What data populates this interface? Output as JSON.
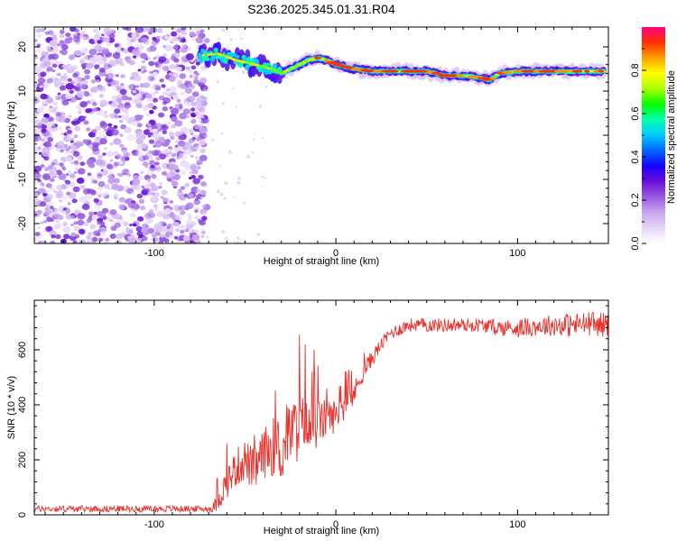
{
  "title": "S236.2025.345.01.31.R04",
  "chart_data": [
    {
      "type": "heatmap",
      "xlabel": "Height of straight line (km)",
      "ylabel": "Frequency (Hz)",
      "xlim": [
        -166,
        150
      ],
      "ylim": [
        -24.5,
        24.5
      ],
      "x_ticks": [
        -100,
        0,
        100
      ],
      "x_tick_labels": [
        "-100",
        "0",
        "100"
      ],
      "y_ticks": [
        20,
        10,
        0,
        -10,
        -20
      ],
      "y_tick_labels": [
        "20",
        "10",
        "0",
        "-10",
        "-20"
      ],
      "noise_region_x": [
        -166,
        -75
      ],
      "signal_track": {
        "x": [
          -75,
          -65,
          -55,
          -45,
          -40,
          -35,
          -30,
          -25,
          -20,
          -15,
          -10,
          -5,
          0,
          5,
          10,
          20,
          30,
          40,
          50,
          60,
          70,
          80,
          85,
          90,
          100,
          110,
          120,
          130,
          140,
          148
        ],
        "y": [
          18,
          18.5,
          17,
          16,
          15.5,
          15,
          14,
          15,
          16,
          17,
          17.5,
          17,
          16,
          15.5,
          15,
          14.5,
          14.5,
          14.5,
          14.5,
          13.5,
          13.5,
          13,
          12.5,
          14,
          14.5,
          14.5,
          14.5,
          14.5,
          14.5,
          14.5
        ]
      },
      "colorbar": {
        "label": "Normalized spectral amplitude",
        "range": [
          0,
          1
        ],
        "ticks": [
          0.0,
          0.2,
          0.4,
          0.6,
          0.8
        ],
        "tick_labels": [
          "0.0",
          "0.2",
          "0.4",
          "0.6",
          "0.8"
        ],
        "colors": [
          "#ffffff",
          "#e6d6f7",
          "#c9a6ef",
          "#9b5ce0",
          "#6a0ed8",
          "#1a00ff",
          "#0066ff",
          "#00c8ff",
          "#00ffb0",
          "#00ff00",
          "#a8ff00",
          "#ffff00",
          "#ffa000",
          "#ff3000",
          "#ff0080"
        ]
      }
    },
    {
      "type": "line",
      "xlabel": "Height of straight line (km)",
      "ylabel": "SNR (10 * v/v)",
      "xlim": [
        -166,
        150
      ],
      "ylim": [
        0,
        780
      ],
      "x_ticks": [
        -100,
        0,
        100
      ],
      "x_tick_labels": [
        "-100",
        "0",
        "100"
      ],
      "y_ticks": [
        0,
        200,
        400,
        600
      ],
      "y_tick_labels": [
        "0",
        "200",
        "400",
        "600"
      ],
      "color": "#e8322d",
      "series": [
        {
          "x": [
            -166,
            -150,
            -130,
            -110,
            -90,
            -75,
            -68,
            -65,
            -60,
            -55,
            -50,
            -45,
            -40,
            -35,
            -30,
            -25,
            -20,
            -15,
            -10,
            -5,
            0,
            5,
            10,
            15,
            20,
            25,
            30,
            40,
            50,
            60,
            70,
            80,
            90,
            100,
            110,
            120,
            130,
            140,
            150
          ],
          "y": [
            22,
            22,
            22,
            22,
            22,
            22,
            22,
            50,
            120,
            170,
            200,
            160,
            220,
            250,
            220,
            300,
            320,
            310,
            330,
            350,
            360,
            400,
            440,
            520,
            570,
            620,
            660,
            690,
            690,
            690,
            690,
            690,
            680,
            680,
            685,
            690,
            690,
            695,
            690
          ],
          "noise_amplitude": [
            12,
            12,
            12,
            12,
            12,
            12,
            12,
            40,
            60,
            70,
            80,
            80,
            90,
            110,
            110,
            120,
            130,
            100,
            90,
            70,
            60,
            50,
            45,
            35,
            30,
            25,
            25,
            25,
            25,
            25,
            25,
            25,
            30,
            35,
            35,
            40,
            45,
            45,
            45
          ],
          "spikes": [
            {
              "x": -60,
              "y": 260
            },
            {
              "x": -45,
              "y": 290
            },
            {
              "x": -32,
              "y": 340
            },
            {
              "x": -27,
              "y": 400
            },
            {
              "x": -20,
              "y": 655
            },
            {
              "x": -17,
              "y": 620
            },
            {
              "x": -12,
              "y": 600
            },
            {
              "x": -5,
              "y": 460
            },
            {
              "x": 2,
              "y": 470
            }
          ]
        }
      ]
    }
  ]
}
